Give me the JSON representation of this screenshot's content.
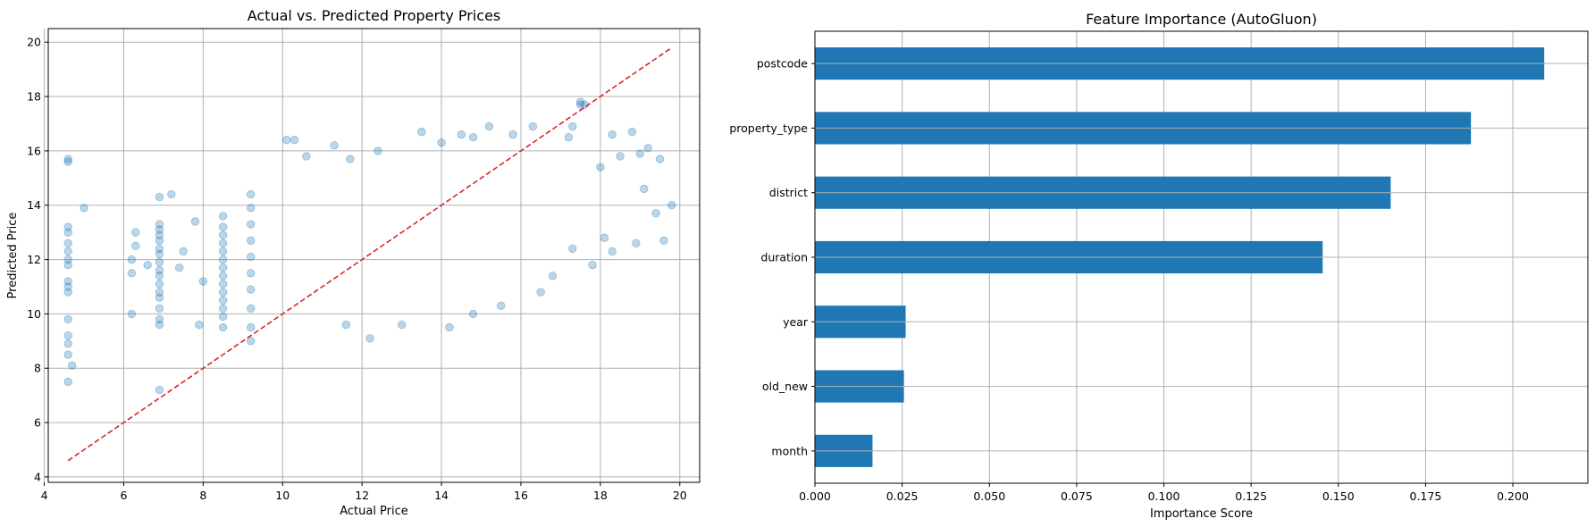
{
  "chart_data": [
    {
      "type": "scatter",
      "title": "Actual vs. Predicted Property Prices",
      "xlabel": "Actual Price",
      "ylabel": "Predicted Price",
      "xlim": [
        4.1,
        20.5
      ],
      "ylim": [
        3.8,
        20.5
      ],
      "xticks": [
        4,
        6,
        8,
        10,
        12,
        14,
        16,
        18,
        20
      ],
      "yticks": [
        4,
        6,
        8,
        10,
        12,
        14,
        16,
        18,
        20
      ],
      "grid": true,
      "point_color": "#1f77b4",
      "point_alpha": 0.3,
      "series": [
        {
          "name": "",
          "points": [
            [
              4.6,
              7.5
            ],
            [
              4.6,
              8.5
            ],
            [
              4.6,
              8.9
            ],
            [
              4.6,
              9.2
            ],
            [
              4.6,
              9.8
            ],
            [
              4.6,
              10.8
            ],
            [
              4.6,
              11.0
            ],
            [
              4.6,
              11.2
            ],
            [
              4.6,
              11.8
            ],
            [
              4.6,
              12.0
            ],
            [
              4.6,
              12.3
            ],
            [
              4.6,
              12.6
            ],
            [
              4.6,
              13.0
            ],
            [
              4.6,
              13.2
            ],
            [
              4.6,
              15.6
            ],
            [
              4.6,
              15.7
            ],
            [
              4.7,
              8.1
            ],
            [
              5.0,
              13.9
            ],
            [
              6.2,
              10.0
            ],
            [
              6.2,
              11.5
            ],
            [
              6.2,
              12.0
            ],
            [
              6.3,
              12.5
            ],
            [
              6.3,
              13.0
            ],
            [
              6.6,
              11.8
            ],
            [
              6.9,
              7.2
            ],
            [
              6.9,
              9.6
            ],
            [
              6.9,
              9.8
            ],
            [
              6.9,
              10.2
            ],
            [
              6.9,
              10.6
            ],
            [
              6.9,
              10.8
            ],
            [
              6.9,
              11.1
            ],
            [
              6.9,
              11.4
            ],
            [
              6.9,
              11.6
            ],
            [
              6.9,
              11.9
            ],
            [
              6.9,
              12.2
            ],
            [
              6.9,
              12.4
            ],
            [
              6.9,
              12.7
            ],
            [
              6.9,
              12.9
            ],
            [
              6.9,
              13.1
            ],
            [
              6.9,
              13.3
            ],
            [
              6.9,
              14.3
            ],
            [
              7.2,
              14.4
            ],
            [
              7.4,
              11.7
            ],
            [
              7.5,
              12.3
            ],
            [
              7.8,
              13.4
            ],
            [
              7.9,
              9.6
            ],
            [
              8.0,
              11.2
            ],
            [
              8.5,
              9.5
            ],
            [
              8.5,
              9.9
            ],
            [
              8.5,
              10.2
            ],
            [
              8.5,
              10.5
            ],
            [
              8.5,
              10.8
            ],
            [
              8.5,
              11.1
            ],
            [
              8.5,
              11.4
            ],
            [
              8.5,
              11.7
            ],
            [
              8.5,
              12.0
            ],
            [
              8.5,
              12.3
            ],
            [
              8.5,
              12.6
            ],
            [
              8.5,
              12.9
            ],
            [
              8.5,
              13.2
            ],
            [
              8.5,
              13.6
            ],
            [
              9.2,
              9.0
            ],
            [
              9.2,
              9.5
            ],
            [
              9.2,
              10.2
            ],
            [
              9.2,
              10.9
            ],
            [
              9.2,
              11.5
            ],
            [
              9.2,
              12.1
            ],
            [
              9.2,
              12.7
            ],
            [
              9.2,
              13.3
            ],
            [
              9.2,
              13.9
            ],
            [
              9.2,
              14.4
            ],
            [
              10.1,
              16.4
            ],
            [
              10.3,
              16.4
            ],
            [
              10.6,
              15.8
            ],
            [
              11.3,
              16.2
            ],
            [
              11.7,
              15.7
            ],
            [
              12.4,
              16.0
            ],
            [
              11.6,
              9.6
            ],
            [
              12.2,
              9.1
            ],
            [
              13.0,
              9.6
            ],
            [
              13.5,
              16.7
            ],
            [
              14.0,
              16.3
            ],
            [
              14.5,
              16.6
            ],
            [
              14.8,
              16.5
            ],
            [
              15.2,
              16.9
            ],
            [
              15.8,
              16.6
            ],
            [
              16.3,
              16.9
            ],
            [
              14.2,
              9.5
            ],
            [
              14.8,
              10.0
            ],
            [
              15.5,
              10.3
            ],
            [
              16.5,
              10.8
            ],
            [
              16.8,
              11.4
            ],
            [
              17.5,
              17.7
            ],
            [
              17.5,
              17.8
            ],
            [
              17.6,
              17.7
            ],
            [
              17.3,
              16.9
            ],
            [
              17.2,
              16.5
            ],
            [
              18.3,
              16.6
            ],
            [
              18.8,
              16.7
            ],
            [
              18.0,
              15.4
            ],
            [
              18.5,
              15.8
            ],
            [
              19.0,
              15.9
            ],
            [
              19.5,
              15.7
            ],
            [
              19.2,
              16.1
            ],
            [
              18.1,
              12.8
            ],
            [
              18.3,
              12.3
            ],
            [
              18.9,
              12.6
            ],
            [
              19.1,
              14.6
            ],
            [
              19.4,
              13.7
            ],
            [
              19.6,
              12.7
            ],
            [
              19.8,
              14.0
            ],
            [
              17.8,
              11.8
            ],
            [
              17.3,
              12.4
            ]
          ]
        }
      ],
      "reference_line": {
        "x": [
          4.6,
          19.8
        ],
        "y": [
          4.6,
          19.8
        ],
        "color": "#d62728",
        "style": "dashed"
      }
    },
    {
      "type": "bar",
      "orientation": "horizontal",
      "title": "Feature Importance (AutoGluon)",
      "xlabel": "Importance Score",
      "ylabel": "",
      "xlim": [
        0,
        0.2215
      ],
      "xticks": [
        "0.000",
        "0.025",
        "0.050",
        "0.075",
        "0.100",
        "0.125",
        "0.150",
        "0.175",
        "0.200"
      ],
      "xtick_values": [
        0,
        0.025,
        0.05,
        0.075,
        0.1,
        0.125,
        0.15,
        0.175,
        0.2
      ],
      "grid": true,
      "bar_color": "#1f77b4",
      "categories": [
        "postcode",
        "property_type",
        "district",
        "duration",
        "year",
        "old_new",
        "month"
      ],
      "values": [
        0.209,
        0.188,
        0.165,
        0.1455,
        0.026,
        0.0255,
        0.0165
      ]
    }
  ]
}
